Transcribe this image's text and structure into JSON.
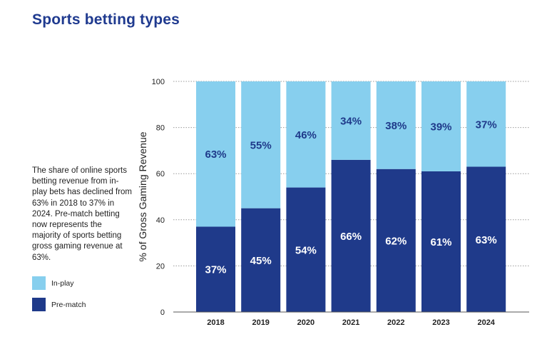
{
  "title": "Sports betting types",
  "description": "The share of online sports betting revenue from in-play bets has declined from 63% in 2018 to 37% in 2024. Pre-match betting now represents the majority of sports betting gross gaming revenue at 63%.",
  "legend": [
    {
      "label": "In-play",
      "color": "#87cfee"
    },
    {
      "label": "Pre-match",
      "color": "#1f3a8a"
    }
  ],
  "chart_data": {
    "type": "bar",
    "stacked": true,
    "title": "",
    "xlabel": "",
    "ylabel": "% of Gross Gaming Revenue",
    "ylim": [
      0,
      100
    ],
    "yticks": [
      0,
      20,
      40,
      60,
      80,
      100
    ],
    "grid": true,
    "legend_position": "left",
    "categories": [
      "2018",
      "2019",
      "2020",
      "2021",
      "2022",
      "2023",
      "2024"
    ],
    "series": [
      {
        "name": "Pre-match",
        "values": [
          37,
          45,
          54,
          66,
          62,
          61,
          63
        ],
        "labels": [
          "37%",
          "45%",
          "54%",
          "66%",
          "62%",
          "61%",
          "63%"
        ],
        "color": "#1f3a8a",
        "label_color": "#ffffff"
      },
      {
        "name": "In-play",
        "values": [
          63,
          55,
          46,
          34,
          38,
          39,
          37
        ],
        "labels": [
          "63%",
          "55%",
          "46%",
          "34%",
          "38%",
          "39%",
          "37%"
        ],
        "color": "#87cfee",
        "label_color": "#1f3a8a"
      }
    ]
  }
}
